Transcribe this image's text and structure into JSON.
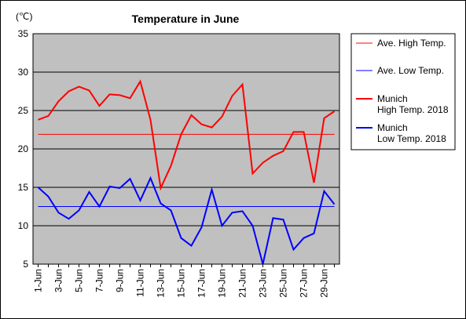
{
  "chart_data": {
    "type": "line",
    "title": "Temperature in June",
    "unit_label": "(℃)",
    "ylim": [
      5,
      35
    ],
    "yticks": [
      5,
      10,
      15,
      20,
      25,
      30,
      35
    ],
    "grid": true,
    "legend_position": "right",
    "x": [
      "1-Jun",
      "2-Jun",
      "3-Jun",
      "4-Jun",
      "5-Jun",
      "6-Jun",
      "7-Jun",
      "8-Jun",
      "9-Jun",
      "10-Jun",
      "11-Jun",
      "12-Jun",
      "13-Jun",
      "14-Jun",
      "15-Jun",
      "16-Jun",
      "17-Jun",
      "18-Jun",
      "19-Jun",
      "20-Jun",
      "21-Jun",
      "22-Jun",
      "23-Jun",
      "24-Jun",
      "25-Jun",
      "26-Jun",
      "27-Jun",
      "28-Jun",
      "29-Jun",
      "30-Jun"
    ],
    "x_tick_labels": [
      "1-Jun",
      "3-Jun",
      "5-Jun",
      "7-Jun",
      "9-Jun",
      "11-Jun",
      "13-Jun",
      "15-Jun",
      "17-Jun",
      "19-Jun",
      "21-Jun",
      "23-Jun",
      "25-Jun",
      "27-Jun",
      "29-Jun"
    ],
    "series": [
      {
        "name": "Ave. High Temp.",
        "color": "#ff0000",
        "values": [
          21.9,
          21.9,
          21.9,
          21.9,
          21.9,
          21.9,
          21.9,
          21.9,
          21.9,
          21.9,
          21.9,
          21.9,
          21.9,
          21.9,
          21.9,
          21.9,
          21.9,
          21.9,
          21.9,
          21.9,
          21.9,
          21.9,
          21.9,
          21.9,
          21.9,
          21.9,
          21.9,
          21.9,
          21.9,
          21.9
        ]
      },
      {
        "name": "Ave. Low Temp.",
        "color": "#0000ff",
        "values": [
          12.5,
          12.5,
          12.5,
          12.5,
          12.5,
          12.5,
          12.5,
          12.5,
          12.5,
          12.5,
          12.5,
          12.5,
          12.5,
          12.5,
          12.5,
          12.5,
          12.5,
          12.5,
          12.5,
          12.5,
          12.5,
          12.5,
          12.5,
          12.5,
          12.5,
          12.5,
          12.5,
          12.5,
          12.5,
          12.5
        ]
      },
      {
        "name": "Munich\nHigh Temp. 2018",
        "color": "#ff0000",
        "values": [
          23.8,
          24.3,
          26.2,
          27.5,
          28.1,
          27.6,
          25.6,
          27.1,
          27.0,
          26.6,
          28.8,
          23.8,
          14.9,
          17.8,
          21.9,
          24.4,
          23.2,
          22.8,
          24.2,
          26.9,
          28.4,
          16.8,
          18.2,
          19.1,
          19.7,
          22.2,
          22.2,
          15.6,
          24.0,
          24.9
        ]
      },
      {
        "name": "Munich\nLow Temp. 2018",
        "color": "#0000ff",
        "values": [
          15.0,
          13.8,
          11.7,
          10.9,
          12.0,
          14.4,
          12.5,
          15.1,
          14.9,
          16.1,
          13.3,
          16.2,
          12.9,
          12.0,
          8.4,
          7.4,
          9.8,
          14.7,
          10.0,
          11.7,
          11.9,
          10.0,
          5.0,
          11.0,
          10.8,
          6.9,
          8.4,
          9.0,
          14.5,
          12.8
        ]
      }
    ]
  }
}
